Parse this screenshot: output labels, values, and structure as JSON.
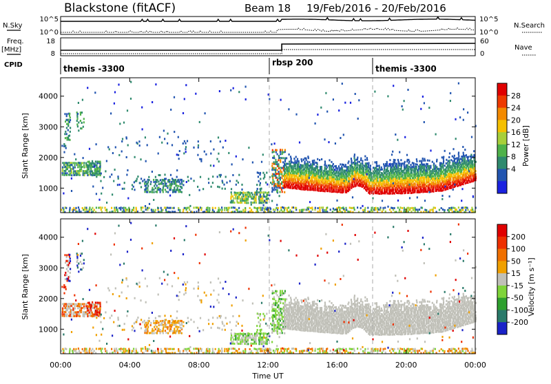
{
  "header": {
    "station": "Blackstone (fitACF)",
    "beam": "Beam 18",
    "date_range": "19/Feb/2016 - 20/Feb/2016"
  },
  "top_panels": {
    "nsky_label": "N.Sky",
    "nsearch_label": "N.Search",
    "nsky_ticks": [
      "10^5",
      "10^0"
    ],
    "nsearch_ticks": [
      "10^5",
      "10^0"
    ],
    "freq_label": "Freq.",
    "freq_unit": "[MHz]",
    "freq_ticks": [
      "18",
      "8"
    ],
    "nave_label": "Nave",
    "nave_ticks": [
      "60",
      "0"
    ],
    "cpid_label": "CPID",
    "cpid_segments": [
      {
        "name": "themis -3300",
        "start_hour": 0
      },
      {
        "name": "rbsp 200",
        "start_hour": 12
      },
      {
        "name": "themis -3300",
        "start_hour": 18
      }
    ]
  },
  "chart_data": [
    {
      "type": "heatmap",
      "name": "power",
      "ylabel": "Slant Range [km]",
      "ylim": [
        200,
        4600
      ],
      "yticks": [
        "4000",
        "3000",
        "2000",
        "1000"
      ],
      "colorbar_label": "Power [dB]",
      "colorbar_ticks": [
        "28",
        "24",
        "20",
        "16",
        "12",
        "8",
        "4"
      ],
      "colors": [
        "#1a22e0",
        "#2255b0",
        "#2f8a6e",
        "#4fb24a",
        "#a8cf3a",
        "#f5c000",
        "#f38a00",
        "#ee3a00",
        "#e00000"
      ]
    },
    {
      "type": "heatmap",
      "name": "velocity",
      "ylabel": "Slant Range [km]",
      "ylim": [
        200,
        4600
      ],
      "yticks": [
        "4000",
        "3000",
        "2000",
        "1000"
      ],
      "colorbar_label": "Velocity [m s⁻¹]",
      "colorbar_ticks": [
        "200",
        "100",
        "50",
        "15",
        "-15",
        "-50",
        "-100",
        "-200"
      ],
      "colors": [
        "#1a22c8",
        "#2a7a6a",
        "#2ea02e",
        "#7fd43a",
        "#c0c0b8",
        "#f0a000",
        "#f07000",
        "#ee3000",
        "#e00000"
      ]
    }
  ],
  "x_axis": {
    "label": "Time UT",
    "ticks": [
      "00:00",
      "04:00",
      "08:00",
      "12:00",
      "16:00",
      "20:00",
      "00:00"
    ]
  }
}
